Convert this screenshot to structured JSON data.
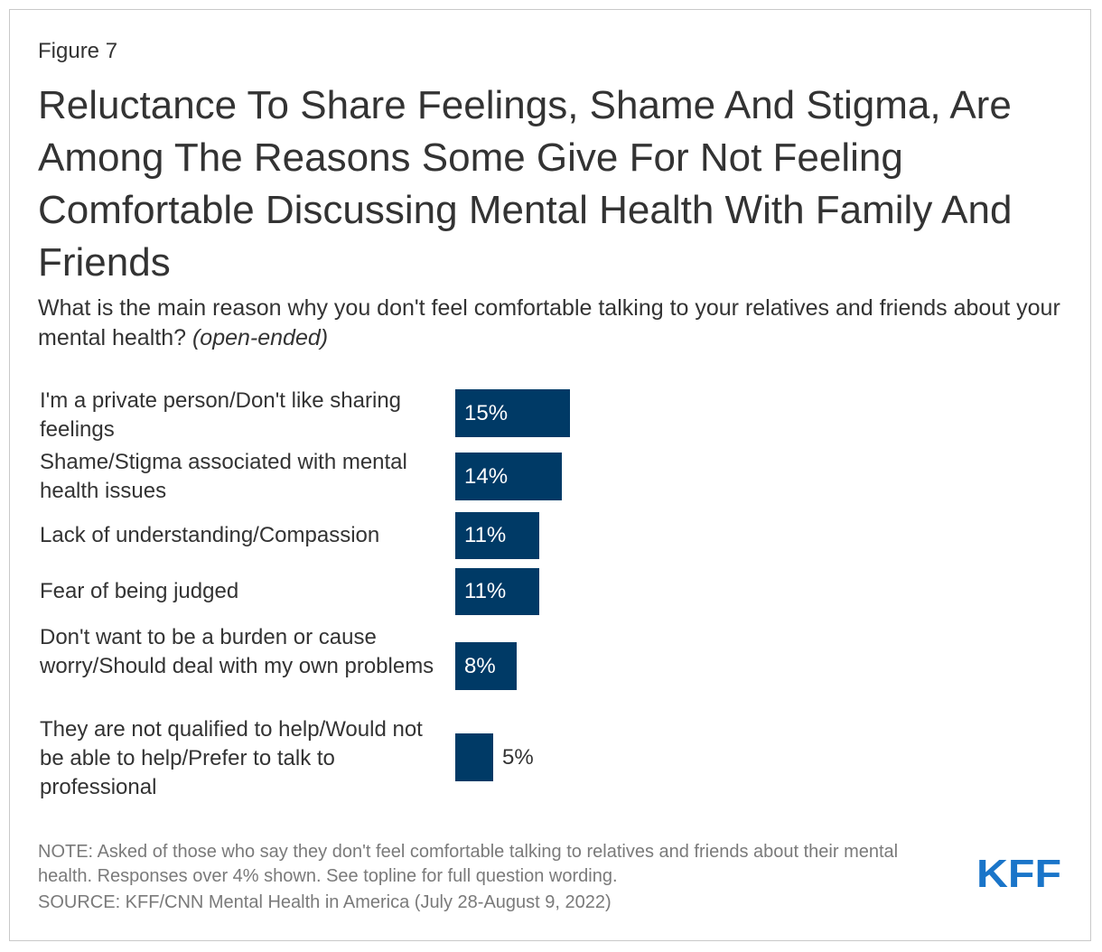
{
  "figure_label": "Figure 7",
  "title": "Reluctance To Share Feelings, Shame And Stigma, Are Among The Reasons Some Give For Not Feeling Comfortable Discussing Mental Health With Family And Friends",
  "subtitle_main": "What is the main reason why you don't feel comfortable talking to your relatives and friends about your mental health?",
  "subtitle_note": "(open-ended)",
  "colors": {
    "bar": "#003A66",
    "text": "#333333",
    "note": "#7a7a7a",
    "logo": "#1a75c9"
  },
  "chart_data": {
    "type": "bar",
    "orientation": "horizontal",
    "categories": [
      "I'm a private person/Don't like sharing feelings",
      "Shame/Stigma associated with mental health issues",
      "Lack of understanding/Compassion",
      "Fear of being judged",
      "Don't want to be a burden or cause worry/Should deal with my own problems",
      "They are not qualified to help/Would not be able to help/Prefer to talk to professional"
    ],
    "values": [
      15,
      14,
      11,
      11,
      8,
      5
    ],
    "value_labels": [
      "15%",
      "14%",
      "11%",
      "11%",
      "8%",
      "5%"
    ],
    "unit": "%",
    "xlim": [
      0,
      100
    ],
    "grid": false,
    "legend": "none"
  },
  "note": "NOTE: Asked of those who say they don't feel comfortable talking to relatives and friends about their mental health. Responses over 4% shown. See topline for full question wording.",
  "source": "SOURCE: KFF/CNN Mental Health in America (July 28-August 9, 2022)",
  "logo": "KFF"
}
